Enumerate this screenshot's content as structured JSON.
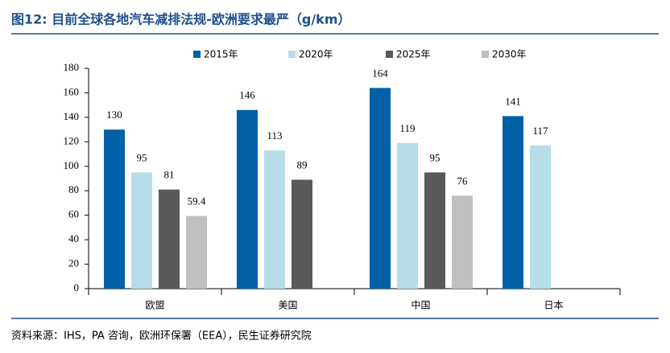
{
  "chart_data": {
    "type": "bar",
    "title": "图12: 目前全球各地汽车减排法规-欧洲要求最严（g/km）",
    "source": "资料来源：IHS，PA 咨询，欧洲环保署（EEA），民生证券研究院",
    "categories": [
      "欧盟",
      "美国",
      "中国",
      "日本"
    ],
    "series": [
      {
        "name": "2015年",
        "color": "#0060a8",
        "values": [
          130,
          146,
          164,
          141
        ]
      },
      {
        "name": "2020年",
        "color": "#b7dde8",
        "values": [
          95,
          113,
          119,
          117
        ]
      },
      {
        "name": "2025年",
        "color": "#595959",
        "values": [
          81,
          89,
          95,
          null
        ]
      },
      {
        "name": "2030年",
        "color": "#bfbfbf",
        "values": [
          59.4,
          null,
          76,
          null
        ]
      }
    ],
    "ylim": [
      0,
      180
    ],
    "yticks": [
      0,
      20,
      40,
      60,
      80,
      100,
      120,
      140,
      160,
      180
    ]
  }
}
